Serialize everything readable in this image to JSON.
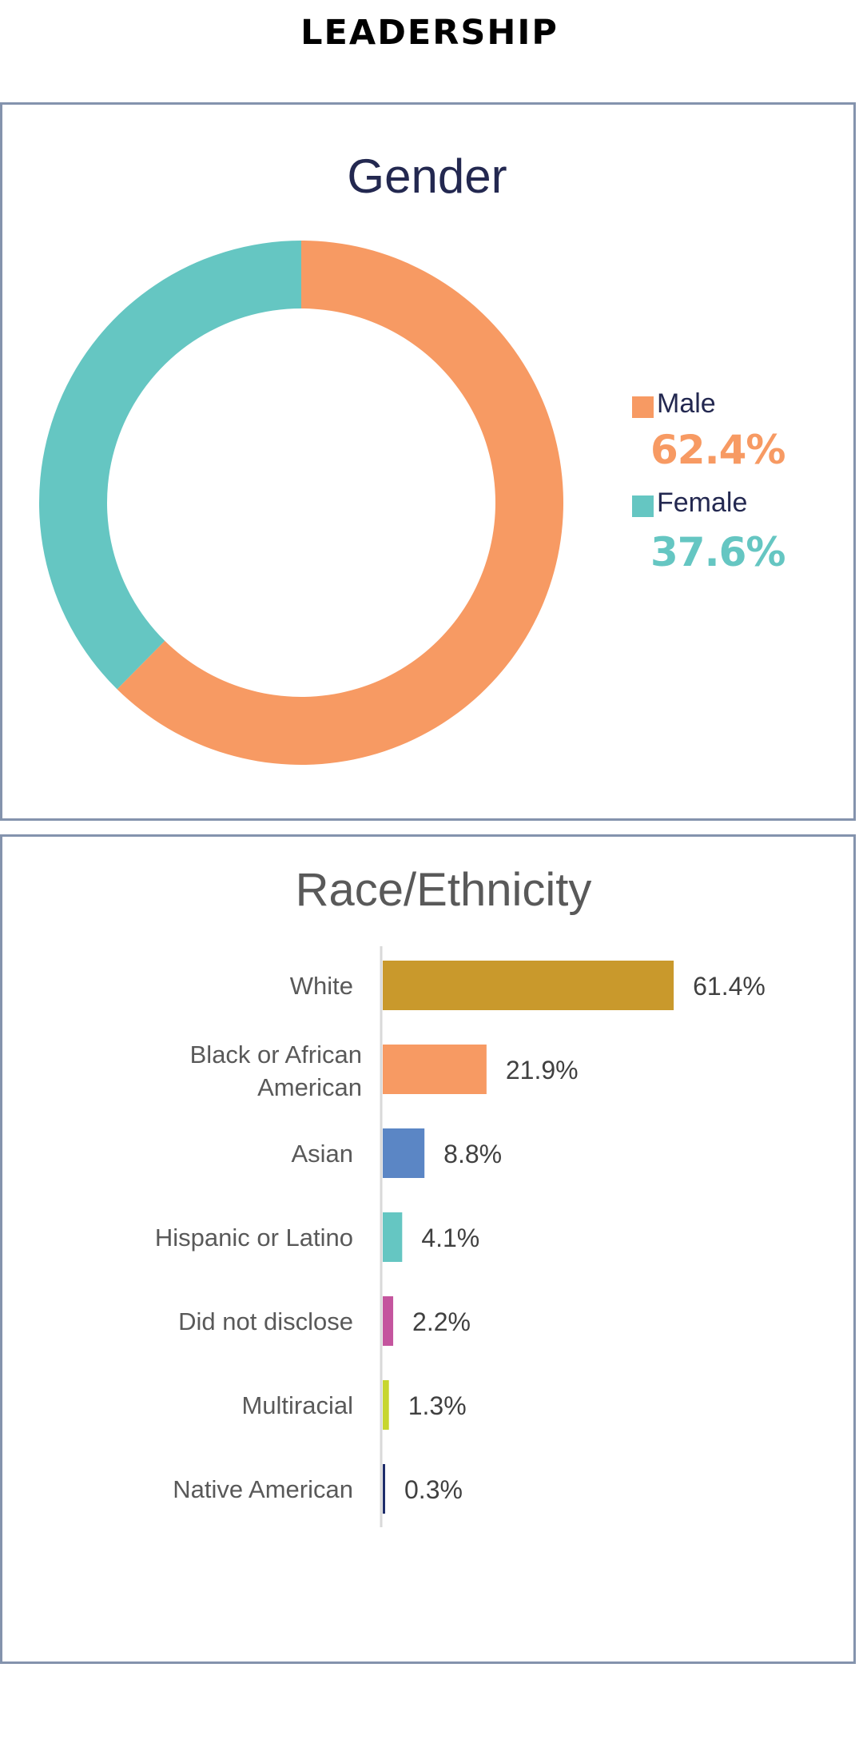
{
  "header": {
    "title": "LEADERSHIP"
  },
  "chart_data": [
    {
      "type": "pie",
      "title": "Gender",
      "donut": true,
      "categories": [
        "Male",
        "Female"
      ],
      "values": [
        62.4,
        37.6
      ],
      "value_labels": [
        "62.4%",
        "37.6%"
      ],
      "colors": [
        "#f79a63",
        "#65c6c2"
      ],
      "legend": "right"
    },
    {
      "type": "bar",
      "orientation": "horizontal",
      "title": "Race/Ethnicity",
      "categories": [
        "White",
        "Black or African American",
        "Asian",
        "Hispanic or Latino",
        "Did not disclose",
        "Multiracial",
        "Native American"
      ],
      "values": [
        61.4,
        21.9,
        8.8,
        4.1,
        2.2,
        1.3,
        0.3
      ],
      "value_labels": [
        "61.4%",
        "21.9%",
        "8.8%",
        "4.1%",
        "2.2%",
        "1.3%",
        "0.3%"
      ],
      "colors": [
        "#c9992c",
        "#f79a63",
        "#5b86c5",
        "#65c6c2",
        "#c4559e",
        "#c7d62f",
        "#1f2d6b"
      ],
      "grid": false
    }
  ]
}
